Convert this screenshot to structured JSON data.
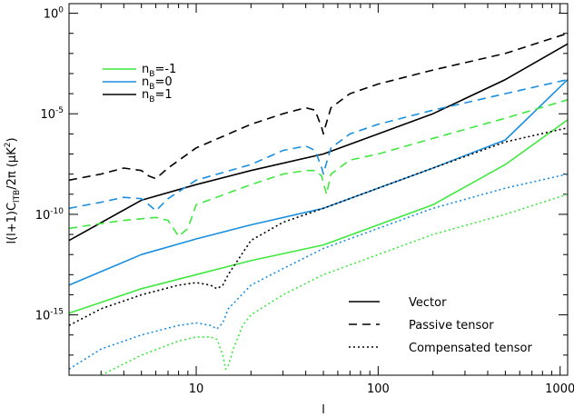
{
  "chart_data": {
    "type": "line",
    "xlabel": "l",
    "ylabel_text": "l(l+1)C",
    "ylabel_sub": "lTB",
    "ylabel_tail": "/2π (μK",
    "ylabel_sup": "2",
    "ylabel_end": ")",
    "xscale": "log",
    "yscale": "log",
    "xlim": [
      2,
      1100
    ],
    "ylim": [
      1e-18,
      3
    ],
    "x_ticks": [
      {
        "value": 10,
        "label": "10"
      },
      {
        "value": 100,
        "label": "100"
      },
      {
        "value": 1000,
        "label": "1000"
      }
    ],
    "y_ticks": [
      {
        "value": 1e-15,
        "base": "10",
        "exp": "-15"
      },
      {
        "value": 1e-10,
        "base": "10",
        "exp": "-10"
      },
      {
        "value": 1e-05,
        "base": "10",
        "exp": "-5"
      },
      {
        "value": 1,
        "base": "10",
        "exp": "0"
      }
    ],
    "colors": {
      "nB_-1": "#3ee83e",
      "nB_0": "#1a8fe0",
      "nB_1": "#000000"
    },
    "color_legend": {
      "placement": "top-left",
      "entries": [
        {
          "key": "nB_-1",
          "base": "n",
          "sub": "B",
          "rest": "=-1"
        },
        {
          "key": "nB_0",
          "base": "n",
          "sub": "B",
          "rest": "=0"
        },
        {
          "key": "nB_1",
          "base": "n",
          "sub": "B",
          "rest": "=1"
        }
      ]
    },
    "style_legend": {
      "placement": "bottom-right",
      "entries": [
        {
          "style": "solid",
          "label": "Vector"
        },
        {
          "style": "dashed",
          "label": "Passive tensor"
        },
        {
          "style": "dotted",
          "label": "Compensated tensor"
        }
      ]
    },
    "series": [
      {
        "group": "nB_1",
        "style": "solid",
        "x": [
          2,
          5,
          10,
          20,
          50,
          100,
          200,
          500,
          1100
        ],
        "y": [
          5e-12,
          5e-10,
          3e-09,
          1.5e-08,
          1e-07,
          1e-06,
          1e-05,
          0.0005,
          0.03
        ]
      },
      {
        "group": "nB_0",
        "style": "solid",
        "x": [
          2,
          5,
          10,
          20,
          50,
          100,
          200,
          500,
          1100
        ],
        "y": [
          3e-14,
          1e-12,
          6e-12,
          3e-11,
          2e-10,
          2e-09,
          2e-08,
          5e-07,
          0.0005
        ]
      },
      {
        "group": "nB_-1",
        "style": "solid",
        "x": [
          2,
          5,
          10,
          20,
          50,
          100,
          200,
          500,
          1100
        ],
        "y": [
          1.2e-15,
          2e-14,
          1e-13,
          5e-13,
          3e-12,
          3e-11,
          3e-10,
          3e-08,
          5e-06
        ]
      },
      {
        "group": "nB_1",
        "style": "dashed",
        "x": [
          2,
          3,
          4,
          5,
          5.5,
          6,
          7,
          10,
          20,
          30,
          40,
          45,
          49,
          50,
          51,
          55,
          70,
          100,
          200,
          500,
          1100
        ],
        "y": [
          5e-09,
          1e-08,
          2e-08,
          1.5e-08,
          8e-09,
          6e-09,
          2e-08,
          2e-07,
          3e-06,
          1e-05,
          2e-05,
          1.5e-05,
          2e-06,
          1e-06,
          2e-06,
          2e-05,
          0.0001,
          0.0003,
          0.0015,
          0.01,
          0.1
        ]
      },
      {
        "group": "nB_0",
        "style": "dashed",
        "x": [
          2,
          3,
          4,
          5,
          5.5,
          6,
          7,
          10,
          20,
          30,
          40,
          45,
          49,
          50,
          51,
          55,
          70,
          100,
          200,
          500,
          1100
        ],
        "y": [
          2e-10,
          4e-10,
          7e-10,
          6e-10,
          3e-10,
          1.5e-10,
          6e-10,
          5e-09,
          3e-08,
          1.5e-07,
          2.5e-07,
          1.5e-07,
          2e-08,
          1e-08,
          2e-08,
          2e-07,
          1e-06,
          3e-06,
          1.5e-05,
          0.0001,
          0.0005
        ]
      },
      {
        "group": "nB_-1",
        "style": "dashed",
        "x": [
          2,
          3,
          4,
          5,
          6,
          7,
          7.5,
          8,
          9,
          10,
          20,
          30,
          40,
          45,
          49,
          50,
          51,
          52,
          55,
          70,
          100,
          200,
          500,
          1100
        ],
        "y": [
          2e-11,
          3.5e-11,
          5e-11,
          6e-11,
          7e-11,
          5e-11,
          2e-11,
          8e-12,
          2e-11,
          3e-10,
          3e-09,
          1e-08,
          1.5e-08,
          1.5e-08,
          8e-09,
          3e-09,
          2e-09,
          1e-09,
          1e-08,
          5e-08,
          1e-07,
          6e-07,
          6e-06,
          5e-05
        ]
      },
      {
        "group": "nB_1",
        "style": "dotted",
        "x": [
          2,
          3,
          5,
          8,
          10,
          12,
          13,
          14,
          15,
          20,
          30,
          50,
          100,
          200,
          500,
          1100
        ],
        "y": [
          3e-16,
          2e-15,
          1e-14,
          3e-14,
          4e-14,
          3e-14,
          2e-14,
          3e-14,
          1e-13,
          5e-12,
          4e-11,
          2e-10,
          2e-09,
          2e-08,
          4e-07,
          2e-06
        ]
      },
      {
        "group": "nB_0",
        "style": "dotted",
        "x": [
          2,
          3,
          5,
          8,
          10,
          12,
          13,
          14,
          15,
          20,
          30,
          50,
          100,
          200,
          500,
          1100
        ],
        "y": [
          2e-18,
          2e-17,
          1e-16,
          3e-16,
          4e-16,
          3e-16,
          2e-16,
          4e-16,
          2e-15,
          3e-14,
          2e-13,
          2e-12,
          2e-11,
          2e-10,
          2e-09,
          1e-08
        ]
      },
      {
        "group": "nB_-1",
        "style": "dotted",
        "x": [
          3,
          5,
          8,
          10,
          12,
          13,
          14,
          14.5,
          15,
          16,
          18,
          20,
          30,
          50,
          100,
          200,
          500,
          1100
        ],
        "y": [
          1e-18,
          1e-17,
          5e-17,
          8e-17,
          8e-17,
          6e-17,
          1e-17,
          2e-18,
          3e-18,
          2e-17,
          3e-16,
          1e-15,
          1e-14,
          1e-13,
          1e-12,
          1e-11,
          1e-10,
          1e-09
        ]
      }
    ]
  }
}
